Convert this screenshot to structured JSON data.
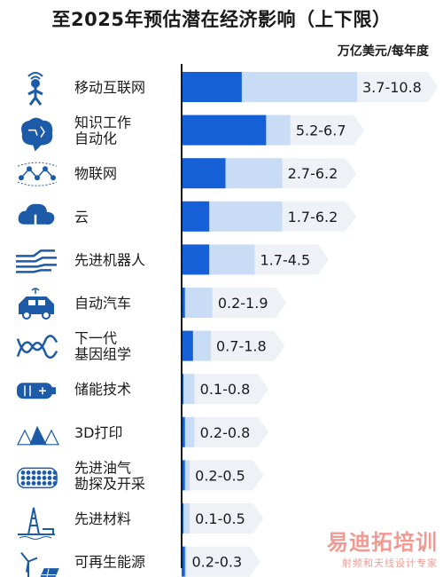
{
  "title": "至2025年预估潜在经济影响（上下限）",
  "unit": "万亿美元/每年度",
  "colors": {
    "low": "#1560d6",
    "high": "#c8dcf5",
    "label_bg": "#eef2f7",
    "axis": "#1a1a1a",
    "icon": "#1d5aa8"
  },
  "chart_data": {
    "type": "bar",
    "title": "至2025年预估潜在经济影响（上下限）",
    "xlabel": "万亿美元/每年度",
    "xlim": [
      0,
      10.8
    ],
    "series": [
      {
        "name": "下限",
        "values": [
          3.7,
          5.2,
          2.7,
          1.7,
          1.7,
          0.2,
          0.7,
          0.1,
          0.2,
          0.2,
          0.1,
          0.2
        ]
      },
      {
        "name": "上限",
        "values": [
          10.8,
          6.7,
          6.2,
          6.2,
          4.5,
          1.9,
          1.8,
          0.8,
          0.8,
          0.5,
          0.5,
          0.3
        ]
      }
    ],
    "categories": [
      {
        "name": "移动互联网",
        "icon": "mobile-person-icon"
      },
      {
        "name": "知识工作\n自动化",
        "icon": "brain-icon"
      },
      {
        "name": "物联网",
        "icon": "iot-network-icon"
      },
      {
        "name": "云",
        "icon": "cloud-icon"
      },
      {
        "name": "先进机器人",
        "icon": "robot-hand-icon"
      },
      {
        "name": "自动汽车",
        "icon": "car-icon"
      },
      {
        "name": "下一代\n基因组学",
        "icon": "dna-icon"
      },
      {
        "name": "储能技术",
        "icon": "battery-icon"
      },
      {
        "name": "3D打印",
        "icon": "3d-shapes-icon"
      },
      {
        "name": "先进油气\n勘探及开采",
        "icon": "pipe-icon"
      },
      {
        "name": "先进材料",
        "icon": "oil-rig-icon"
      },
      {
        "name": "可再生能源",
        "icon": "wind-solar-icon"
      }
    ],
    "value_labels": [
      "3.7-10.8",
      "5.2-6.7",
      "2.7-6.2",
      "1.7-6.2",
      "1.7-4.5",
      "0.2-1.9",
      "0.7-1.8",
      "0.1-0.8",
      "0.2-0.8",
      "0.2-0.5",
      "0.1-0.5",
      "0.2-0.3"
    ]
  },
  "watermark": {
    "main": "易迪拓培训",
    "sub": "射频和天线设计专家"
  }
}
